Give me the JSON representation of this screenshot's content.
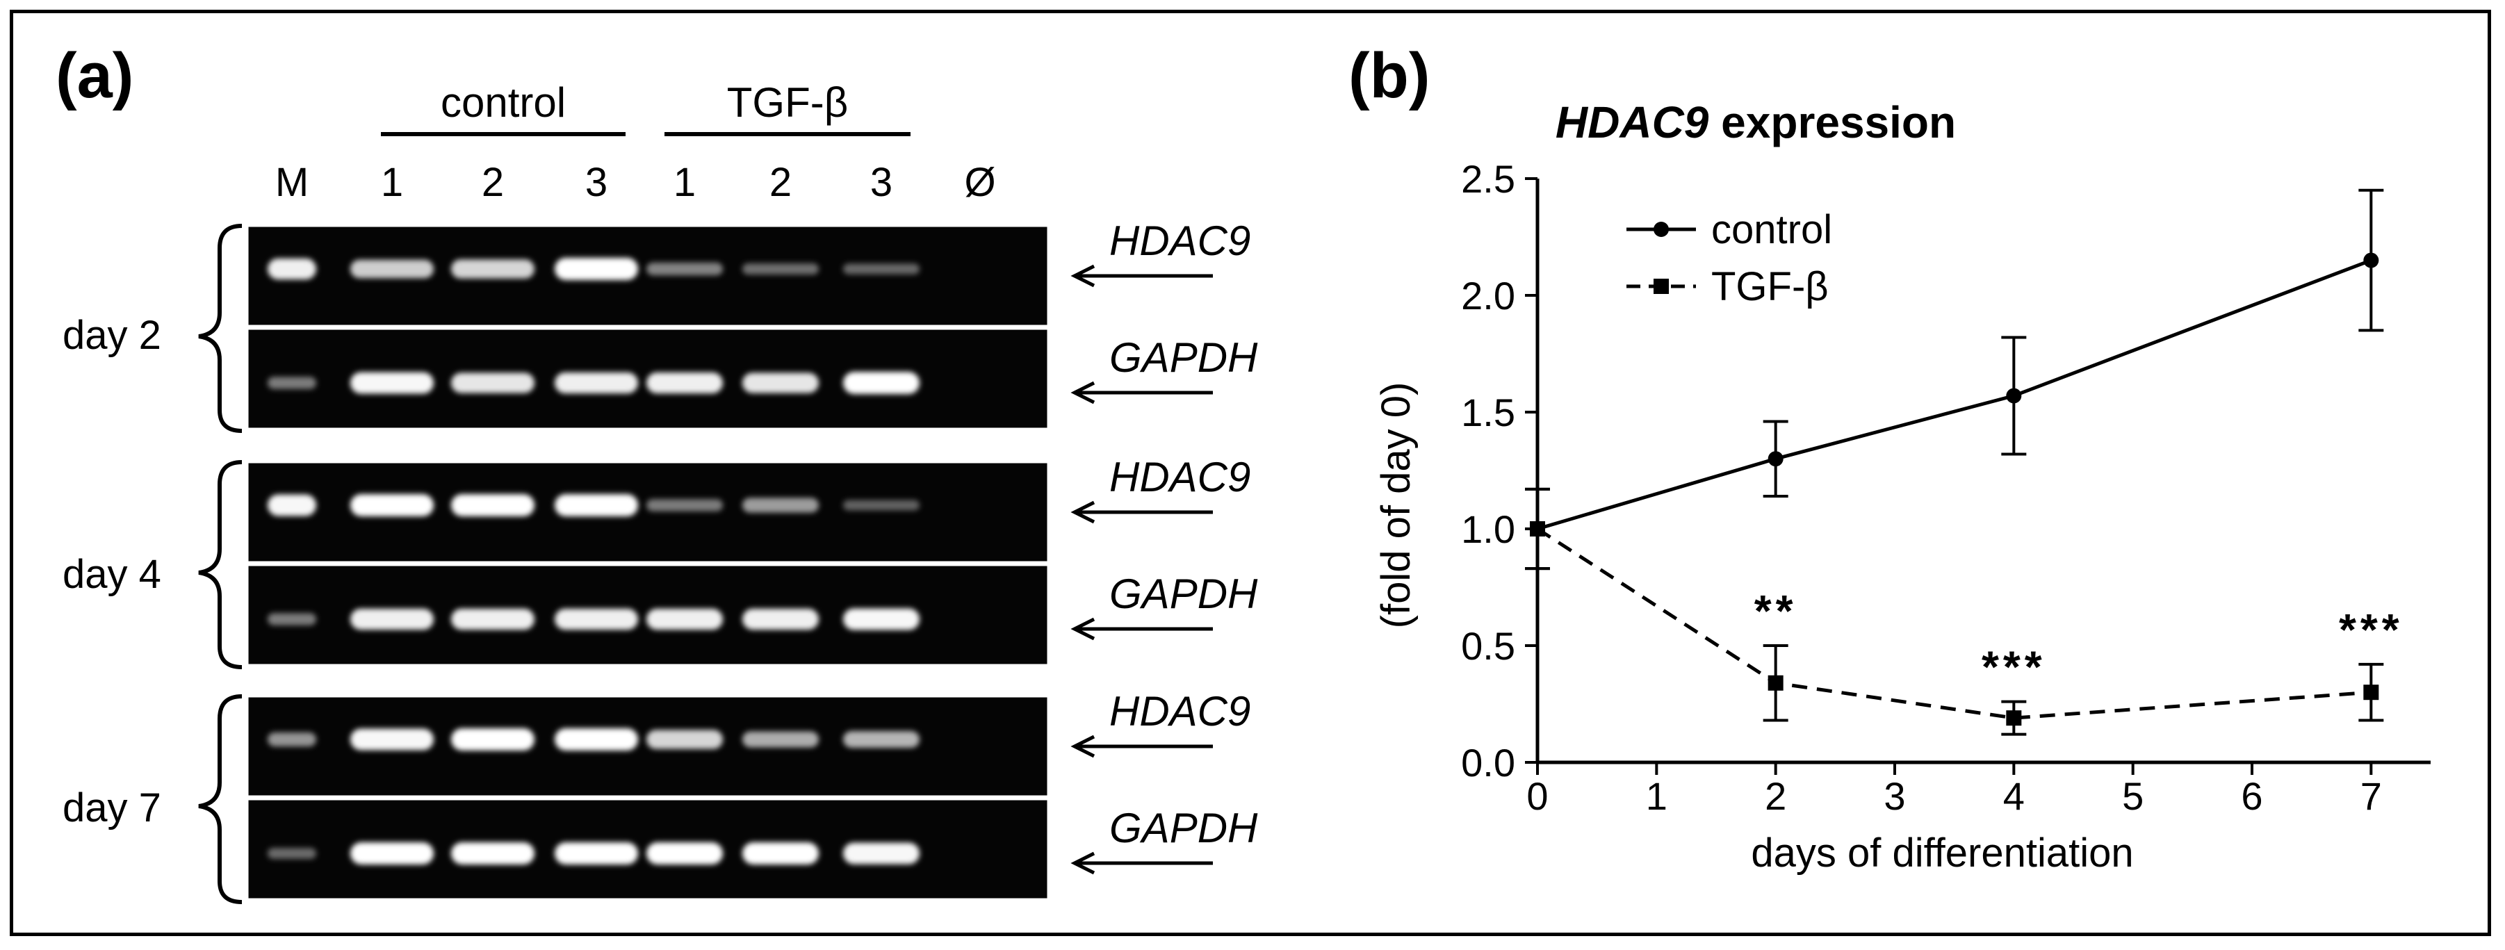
{
  "panel_a": {
    "label": "(a)",
    "group_labels": [
      "control",
      "TGF-β"
    ],
    "lane_labels": [
      "M",
      "1",
      "2",
      "3",
      "1",
      "2",
      "3",
      "Ø"
    ],
    "days": [
      {
        "label": "day 2",
        "hdac9": [
          0.9,
          0.7,
          0.75,
          1.0,
          0.25,
          0.12,
          0.08,
          0
        ],
        "gapdh": [
          0.2,
          0.95,
          0.85,
          0.9,
          0.9,
          0.85,
          1.0,
          0
        ]
      },
      {
        "label": "day 4",
        "hdac9": [
          0.95,
          1.0,
          1.0,
          1.0,
          0.2,
          0.4,
          0.05,
          0
        ],
        "gapdh": [
          0.2,
          0.9,
          0.9,
          0.9,
          0.9,
          0.9,
          0.95,
          0
        ]
      },
      {
        "label": "day 7",
        "hdac9": [
          0.35,
          0.95,
          1.0,
          1.0,
          0.75,
          0.5,
          0.55,
          0
        ],
        "gapdh": [
          0.1,
          1.0,
          1.0,
          1.0,
          1.0,
          1.0,
          0.95,
          0
        ]
      }
    ],
    "gene_labels": [
      "HDAC9",
      "GAPDH"
    ]
  },
  "panel_b": {
    "label": "(b)",
    "title_italic": "HDAC9",
    "title_rest": " expression",
    "significance": [
      "**",
      "***",
      "***"
    ]
  },
  "chart_data": {
    "type": "line",
    "title": "HDAC9 expression",
    "xlabel": "days of differentiation",
    "ylabel": "(fold of day 0)",
    "xlim": [
      0,
      7.5
    ],
    "ylim": [
      0,
      2.5
    ],
    "xticks": [
      "0",
      "1",
      "2",
      "3",
      "4",
      "5",
      "6",
      "7"
    ],
    "yticks": [
      "0.0",
      "0.5",
      "1.0",
      "1.5",
      "2.0",
      "2.5"
    ],
    "legend_position": "top-left",
    "series": [
      {
        "name": "control",
        "style": "solid",
        "marker": "circle",
        "x": [
          0,
          2,
          4,
          7
        ],
        "y": [
          1.0,
          1.3,
          1.57,
          2.15
        ],
        "err": [
          0.17,
          0.16,
          0.25,
          0.3
        ]
      },
      {
        "name": "TGF-β",
        "style": "dashed",
        "marker": "square",
        "x": [
          0,
          2,
          4,
          7
        ],
        "y": [
          1.0,
          0.34,
          0.19,
          0.3
        ],
        "err": [
          0.17,
          0.16,
          0.07,
          0.12
        ]
      }
    ],
    "annotations": [
      {
        "x": 2,
        "y": 0.5,
        "text": "**"
      },
      {
        "x": 4,
        "y": 0.26,
        "text": "***"
      },
      {
        "x": 7,
        "y": 0.42,
        "text": "***"
      }
    ]
  }
}
